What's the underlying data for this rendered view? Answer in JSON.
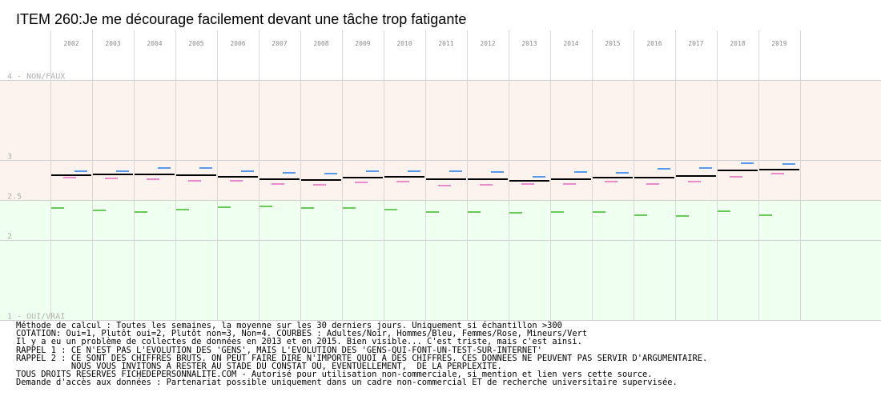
{
  "chart_data": {
    "type": "line",
    "title": "ITEM 260:Je me décourage facilement devant une tâche trop fatigante",
    "years": [
      "2002",
      "2003",
      "2004",
      "2005",
      "2006",
      "2007",
      "2008",
      "2009",
      "2010",
      "2011",
      "2012",
      "2013",
      "2014",
      "2015",
      "2016",
      "2017",
      "2018",
      "2019"
    ],
    "y_labels": [
      {
        "value": 4,
        "text": "4 - NON/FAUX"
      },
      {
        "value": 3,
        "text": "3"
      },
      {
        "value": 2.5,
        "text": "2.5"
      },
      {
        "value": 2,
        "text": "2"
      },
      {
        "value": 1,
        "text": "1 - OUI/VRAI"
      }
    ],
    "ylim": [
      1,
      4
    ],
    "grid": true,
    "zones": [
      {
        "from": 2.5,
        "to": 4,
        "color": "#fdf3ee"
      },
      {
        "from": 1,
        "to": 2.5,
        "color": "#effff0"
      }
    ],
    "series": [
      {
        "color": "#000000",
        "values": [
          2.81,
          2.82,
          2.82,
          2.81,
          2.79,
          2.76,
          2.75,
          2.78,
          2.79,
          2.76,
          2.76,
          2.74,
          2.76,
          2.78,
          2.78,
          2.8,
          2.87,
          2.88
        ]
      },
      {
        "color": "#5599ee",
        "values": [
          2.86,
          2.86,
          2.9,
          2.9,
          2.86,
          2.84,
          2.83,
          2.86,
          2.86,
          2.86,
          2.85,
          2.79,
          2.85,
          2.84,
          2.89,
          2.9,
          2.96,
          2.95
        ]
      },
      {
        "color": "#ee88cc",
        "values": [
          2.78,
          2.77,
          2.76,
          2.74,
          2.74,
          2.7,
          2.69,
          2.72,
          2.73,
          2.68,
          2.69,
          2.7,
          2.7,
          2.73,
          2.7,
          2.73,
          2.79,
          2.83
        ]
      },
      {
        "color": "#66cc55",
        "values": [
          2.4,
          2.37,
          2.35,
          2.38,
          2.41,
          2.42,
          2.4,
          2.4,
          2.38,
          2.35,
          2.35,
          2.34,
          2.35,
          2.35,
          2.31,
          2.3,
          2.36,
          2.31
        ]
      }
    ]
  },
  "notes": [
    "Méthode de calcul : Toutes les semaines, la moyenne sur les 30 derniers jours. Uniquement si échantillon >300",
    "COTATION: Oui=1, Plutôt oui=2, Plutôt non=3, Non=4. COURBES : Adultes/Noir, Hommes/Bleu, Femmes/Rose, Mineurs/Vert",
    "Il y a eu un problème de collectes de données en 2013 et en 2015. Bien visible... C'est triste, mais c'est ainsi.",
    "RAPPEL 1 : CE N'EST PAS L'EVOLUTION DES 'GENS', MAIS L'EVOLUTION DES 'GENS-QUI-FONT-UN-TEST-SUR-INTERNET'",
    "RAPPEL 2 : CE SONT DES CHIFFRES BRUTS. ON PEUT FAIRE DIRE N'IMPORTE QUOI A DES CHIFFRES. CES DONNEES NE PEUVENT PAS SERVIR D'ARGUMENTAIRE.",
    "           NOUS VOUS INVITONS A RESTER AU STADE DU CONSTAT OU, EVENTUELLEMENT,  DE LA PERPLEXITE.",
    "TOUS DROITS RESERVES FICHEDEPERSONNALITE.COM - Autorisé pour utilisation non-commerciale, si mention et lien vers cette source.",
    "Demande d'accès aux données : Partenariat possible uniquement dans un cadre non-commercial ET de recherche universitaire supervisée."
  ]
}
